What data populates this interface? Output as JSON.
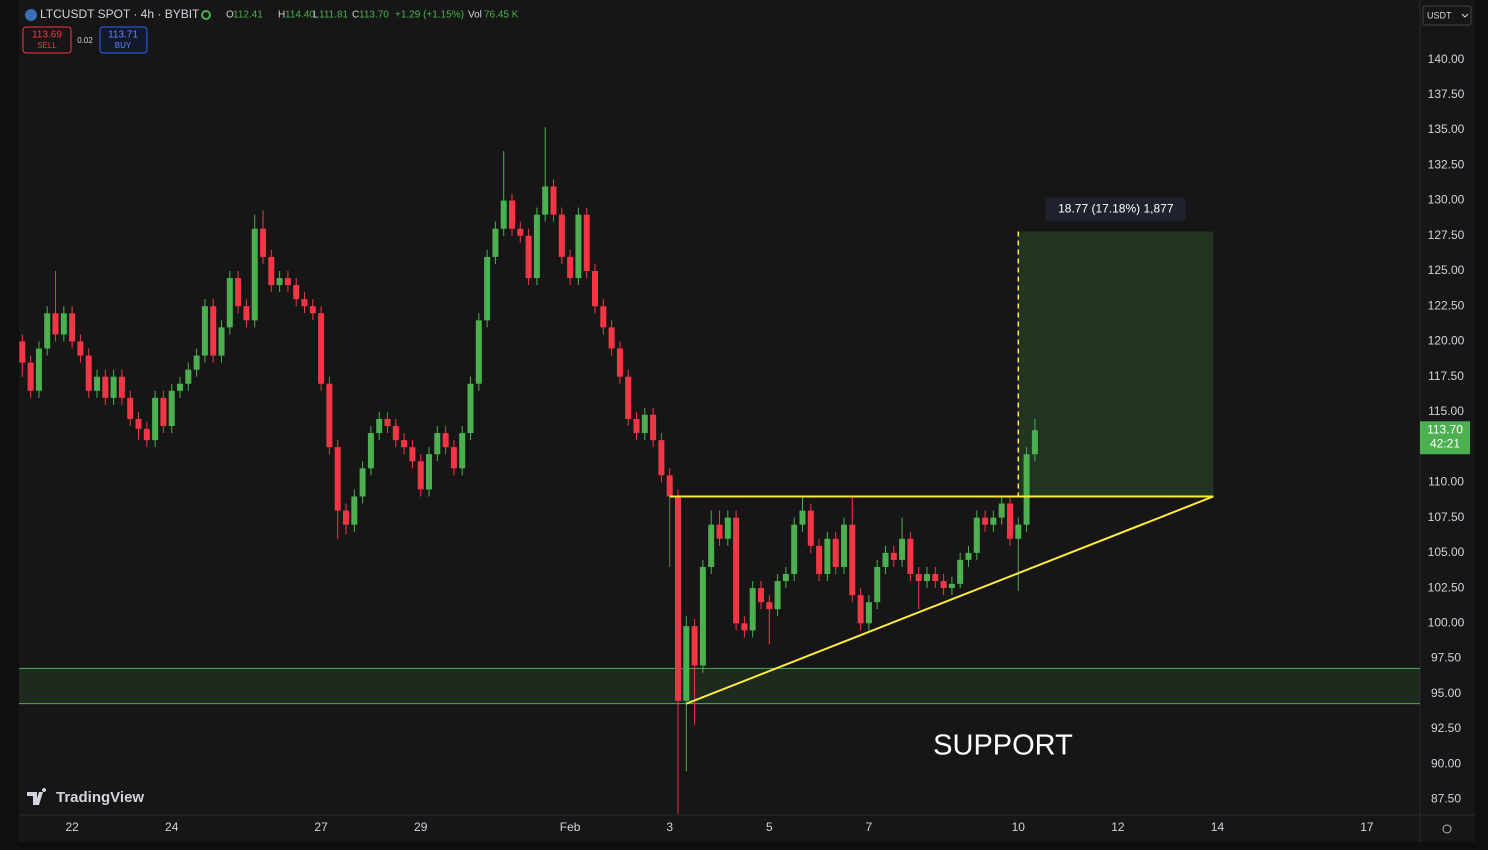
{
  "header": {
    "symbol": "LTCUSDT SPOT · 4h · BYBIT",
    "legend": [
      [
        "O",
        "112.41"
      ],
      [
        "H",
        "114.40"
      ],
      [
        "L",
        "111.81"
      ],
      [
        "C",
        "113.70"
      ]
    ],
    "change": "+1.29 (+1.15%)",
    "volume": [
      "Vol",
      "76.45 K"
    ],
    "sell": {
      "price": "113.69",
      "label": "SELL"
    },
    "spread": "0.02",
    "buy": {
      "price": "113.71",
      "label": "BUY"
    },
    "currency": "USDT"
  },
  "brand": "TradingView",
  "chart_data": {
    "type": "candlestick",
    "up_color": "#4caf50",
    "down_color": "#f23645",
    "grid": false,
    "xlim": [
      -0.4,
      168.4
    ],
    "xticks": [
      {
        "value": 6,
        "label": "22"
      },
      {
        "value": 18,
        "label": "24"
      },
      {
        "value": 36,
        "label": "27"
      },
      {
        "value": 48,
        "label": "29"
      },
      {
        "value": 66,
        "label": "Feb"
      },
      {
        "value": 78,
        "label": "3"
      },
      {
        "value": 90,
        "label": "5"
      },
      {
        "value": 102,
        "label": "7"
      },
      {
        "value": 120,
        "label": "10"
      },
      {
        "value": 132,
        "label": "12"
      },
      {
        "value": 144,
        "label": "14"
      },
      {
        "value": 162,
        "label": "17"
      }
    ],
    "ylim": [
      86.4,
      142.1
    ],
    "yticks": [
      {
        "value": 87.5,
        "label": "87.50"
      },
      {
        "value": 90,
        "label": "90.00"
      },
      {
        "value": 92.5,
        "label": "92.50"
      },
      {
        "value": 95,
        "label": "95.00"
      },
      {
        "value": 97.5,
        "label": "97.50"
      },
      {
        "value": 100,
        "label": "100.00"
      },
      {
        "value": 102.5,
        "label": "102.50"
      },
      {
        "value": 105,
        "label": "105.00"
      },
      {
        "value": 107.5,
        "label": "107.50"
      },
      {
        "value": 110,
        "label": "110.00"
      },
      {
        "value": 112.5,
        "label": "112.50"
      },
      {
        "value": 115,
        "label": "115.00"
      },
      {
        "value": 117.5,
        "label": "117.50"
      },
      {
        "value": 120,
        "label": "120.00"
      },
      {
        "value": 122.5,
        "label": "122.50"
      },
      {
        "value": 125,
        "label": "125.00"
      },
      {
        "value": 127.5,
        "label": "127.50"
      },
      {
        "value": 130,
        "label": "130.00"
      },
      {
        "value": 132.5,
        "label": "132.50"
      },
      {
        "value": 135,
        "label": "135.00"
      },
      {
        "value": 137.5,
        "label": "137.50"
      },
      {
        "value": 140,
        "label": "140.00"
      }
    ],
    "open": [
      120,
      118.5,
      116.5,
      119.5,
      122,
      120.5,
      122,
      120,
      119,
      116.5,
      117.5,
      116,
      117.5,
      116,
      114.5,
      113.8,
      113,
      116,
      114,
      116.5,
      117,
      118,
      119,
      122.5,
      119,
      121,
      124.5,
      122.5,
      121.5,
      128,
      126,
      124,
      124.5,
      124,
      123,
      122.5,
      122,
      117,
      112.5,
      108,
      107,
      109,
      111,
      113.5,
      114.5,
      114,
      113,
      112.5,
      111.5,
      109.5,
      112,
      113.5,
      112.5,
      111,
      113.5,
      117,
      121.5,
      126,
      128,
      130,
      128,
      127.5,
      124.5,
      129,
      131,
      129,
      126,
      124.5,
      129,
      125,
      122.5,
      121,
      119.5,
      117.5,
      114.5,
      113.5,
      114.8,
      113,
      110.5,
      109,
      94.5,
      99.8,
      97,
      104,
      107,
      106,
      107.5,
      100,
      99.5,
      102.5,
      101.5,
      101,
      103,
      103.5,
      107,
      108,
      105.5,
      103.5,
      106,
      104,
      107,
      102,
      100,
      101.5,
      104,
      105,
      104.5,
      106,
      103.5,
      103,
      103.5,
      103,
      102.5,
      102.8,
      104.5,
      105,
      107.5,
      107,
      107.5,
      108.5,
      106,
      107,
      112
    ],
    "high": [
      120.5,
      119,
      120,
      122.5,
      125,
      122.5,
      122.5,
      120.5,
      119.5,
      118,
      118,
      118,
      118,
      116.5,
      115,
      114.3,
      116.5,
      116.5,
      117,
      117.5,
      118.5,
      119.5,
      123,
      123,
      121.5,
      125,
      125,
      123,
      129,
      129.3,
      126.5,
      125,
      125,
      124.5,
      123.5,
      123,
      122.5,
      117.5,
      113,
      108.5,
      109.5,
      111.5,
      114,
      115,
      115,
      114.5,
      113.5,
      113,
      112,
      112.5,
      114,
      114,
      113,
      114,
      117.5,
      122,
      126.5,
      128.5,
      133.5,
      130.5,
      128.5,
      128,
      129.5,
      135.2,
      131.5,
      129.5,
      126.5,
      129.5,
      129.5,
      125.5,
      123,
      121.5,
      120,
      118,
      115,
      115.3,
      115.3,
      113.5,
      111,
      109.5,
      100.5,
      100.3,
      104.5,
      108,
      108,
      108,
      108,
      100.5,
      103,
      103,
      102,
      103.5,
      104,
      107.5,
      109,
      108.5,
      106,
      106.5,
      106.5,
      107.5,
      109,
      102.5,
      102,
      104.5,
      105.5,
      105.5,
      107.5,
      106.5,
      104,
      104,
      104,
      103.5,
      103.3,
      105,
      105.5,
      108,
      108,
      108,
      109,
      109,
      107.5,
      112.5,
      114.5
    ],
    "low": [
      117.5,
      116,
      116,
      119,
      120,
      120,
      119.5,
      118.5,
      116,
      116,
      115.5,
      115.5,
      115.5,
      114,
      113,
      112.5,
      112.5,
      113.5,
      113.5,
      116,
      116.5,
      117.5,
      118.5,
      118.5,
      118.5,
      120.5,
      122,
      121,
      121,
      125.5,
      123.5,
      123.5,
      123.5,
      122.5,
      122,
      121.5,
      116.5,
      112,
      106,
      106.3,
      106.5,
      108.5,
      110.5,
      113,
      113.5,
      112.5,
      112,
      111,
      109,
      109,
      111.5,
      112,
      110.5,
      110.5,
      113,
      116.5,
      121,
      125.5,
      127.5,
      127.5,
      127,
      124,
      124,
      128.5,
      128.5,
      125.5,
      124,
      124,
      124.5,
      122,
      120.5,
      119,
      117,
      114,
      113,
      113,
      112.5,
      110,
      104,
      86.5,
      89.5,
      92.8,
      96.5,
      103.5,
      105.5,
      105.5,
      99.5,
      99,
      99,
      101,
      98.5,
      100.5,
      102.5,
      103,
      106.5,
      105,
      103,
      103,
      103.5,
      103.5,
      101.5,
      99.5,
      99.5,
      101,
      103.5,
      104,
      104,
      103,
      101,
      102.5,
      102.5,
      102,
      102,
      102.5,
      104,
      104.5,
      106.5,
      106.5,
      107,
      105.5,
      102.3,
      106.5,
      111.5
    ],
    "close": [
      118.5,
      116.5,
      119.5,
      122,
      120.5,
      122,
      120,
      119,
      116.5,
      117.5,
      116,
      117.5,
      116,
      114.5,
      113.8,
      113,
      116,
      114,
      116.5,
      117,
      118,
      119,
      122.5,
      119,
      121,
      124.5,
      122.5,
      121.5,
      128,
      126,
      124,
      124.5,
      124,
      123,
      122.5,
      122,
      117,
      112.5,
      108,
      107,
      109,
      111,
      113.5,
      114.5,
      114,
      113,
      112.5,
      111.5,
      109.5,
      112,
      113.5,
      112.5,
      111,
      113.5,
      117,
      121.5,
      126,
      128,
      130,
      128,
      127.5,
      124.5,
      129,
      131,
      129,
      126,
      124.5,
      129,
      125,
      122.5,
      121,
      119.5,
      117.5,
      114.5,
      113.5,
      114.8,
      113,
      110.5,
      109,
      94.5,
      99.8,
      97,
      104,
      107,
      106,
      107.5,
      100,
      99.5,
      102.5,
      101.5,
      101,
      103,
      103.5,
      107,
      108,
      105.5,
      103.5,
      106,
      104,
      107,
      102,
      100,
      101.5,
      104,
      105,
      104.5,
      106,
      103.5,
      103,
      103.5,
      103,
      102.5,
      102.8,
      104.5,
      105,
      107.5,
      107,
      107.5,
      108.5,
      106,
      107,
      112,
      113.7
    ],
    "price_tag": "113.70",
    "countdown": "42:21",
    "support_zone": [
      94.3,
      96.8
    ],
    "support_label": "SUPPORT",
    "resistance": 109,
    "trendline": [
      94.3,
      109
    ],
    "measure": [
      109,
      127.8
    ],
    "measure_label": "18.77 (17.18%) 1,877"
  }
}
